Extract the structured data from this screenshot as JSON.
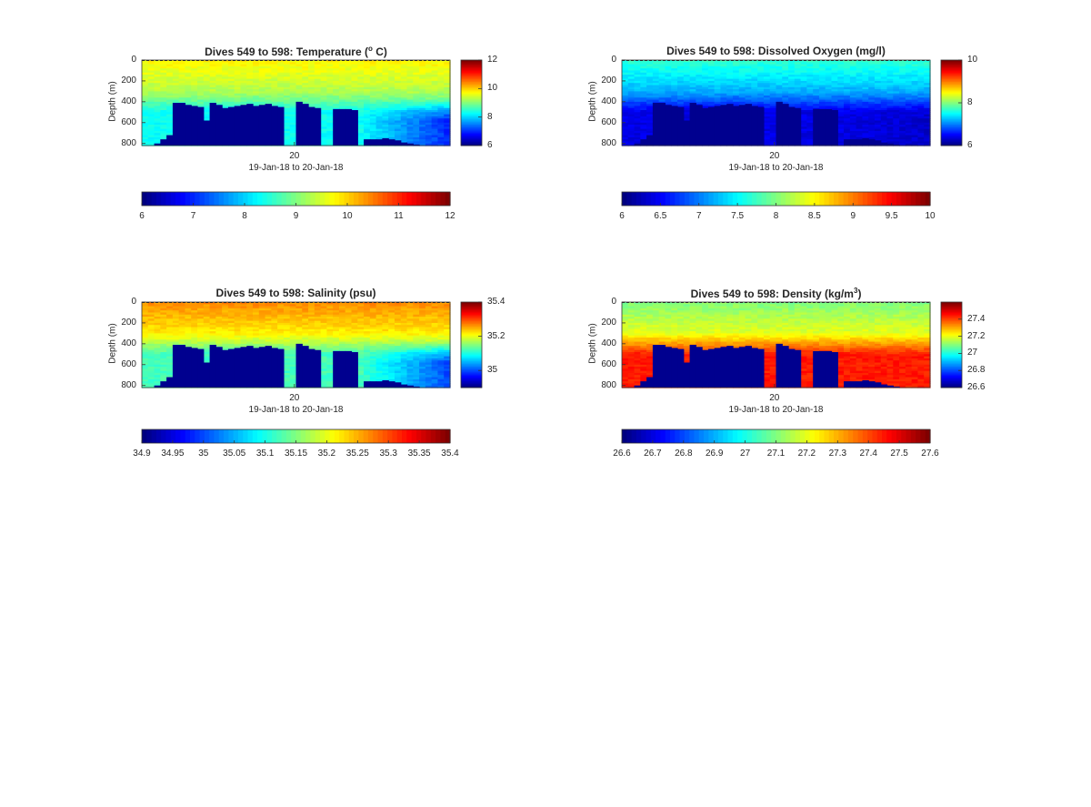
{
  "chart_data": [
    {
      "type": "heatmap",
      "title": "Dives 549 to 598: Temperature (",
      "title_sup": "o",
      "title_end": " C)",
      "ylabel": "Depth (m)",
      "xlabel": "19-Jan-18 to 20-Jan-18",
      "x_tick": "20",
      "y_ticks": [
        0,
        200,
        400,
        600,
        800
      ],
      "ylim": [
        820,
        0
      ],
      "clim": [
        6,
        12
      ],
      "side_colorbar_ticks": [
        6,
        8,
        10,
        12
      ],
      "bottom_colorbar_ticks": [
        6,
        7,
        8,
        9,
        10,
        11,
        12
      ],
      "profile": {
        "surface": 9.8,
        "mid": 9.3,
        "deep": 8.3,
        "deep_late": 7.0
      },
      "bathymetry": [
        820,
        820,
        800,
        760,
        720,
        410,
        410,
        430,
        440,
        450,
        580,
        410,
        430,
        460,
        450,
        440,
        430,
        420,
        440,
        430,
        420,
        440,
        450,
        820,
        820,
        400,
        420,
        450,
        460,
        820,
        820,
        470,
        470,
        470,
        480,
        820,
        760,
        760,
        760,
        750,
        760,
        770,
        790,
        800,
        810,
        820,
        820,
        820,
        820,
        820
      ]
    },
    {
      "type": "heatmap",
      "title": "Dives 549 to 598: Dissolved Oxygen (mg/l)",
      "ylabel": "Depth (m)",
      "xlabel": "19-Jan-18 to 20-Jan-18",
      "x_tick": "20",
      "y_ticks": [
        0,
        200,
        400,
        600,
        800
      ],
      "ylim": [
        820,
        0
      ],
      "clim": [
        6,
        10
      ],
      "side_colorbar_ticks": [
        6,
        8,
        10
      ],
      "bottom_colorbar_ticks": [
        "6",
        "6.5",
        "7",
        "7.5",
        "8",
        "8.5",
        "9",
        "9.5",
        "10"
      ],
      "profile": {
        "surface": 7.7,
        "mid": 7.2,
        "deep": 6.4,
        "deep_late": 6.3
      },
      "bathymetry": [
        820,
        820,
        800,
        760,
        720,
        410,
        410,
        430,
        440,
        450,
        580,
        410,
        430,
        460,
        450,
        440,
        430,
        420,
        440,
        430,
        420,
        440,
        450,
        820,
        820,
        400,
        420,
        450,
        460,
        820,
        820,
        470,
        470,
        470,
        480,
        820,
        760,
        760,
        760,
        750,
        760,
        770,
        790,
        800,
        810,
        820,
        820,
        820,
        820,
        820
      ]
    },
    {
      "type": "heatmap",
      "title": "Dives 549 to 598: Salinity (psu)",
      "ylabel": "Depth (m)",
      "xlabel": "19-Jan-18 to 20-Jan-18",
      "x_tick": "20",
      "y_ticks": [
        0,
        200,
        400,
        600,
        800
      ],
      "ylim": [
        820,
        0
      ],
      "clim": [
        34.9,
        35.4
      ],
      "side_colorbar_ticks": [
        35,
        35.2,
        35.4
      ],
      "bottom_colorbar_ticks": [
        "34.9",
        "34.95",
        "35",
        "35.05",
        "35.1",
        "35.15",
        "35.2",
        "35.25",
        "35.3",
        "35.35",
        "35.4"
      ],
      "profile": {
        "surface": 35.27,
        "mid": 35.22,
        "deep": 35.12,
        "deep_late": 35.0
      },
      "bathymetry": [
        820,
        820,
        800,
        760,
        720,
        410,
        410,
        430,
        440,
        450,
        580,
        410,
        430,
        460,
        450,
        440,
        430,
        420,
        440,
        430,
        420,
        440,
        450,
        820,
        820,
        400,
        420,
        450,
        460,
        820,
        820,
        470,
        470,
        470,
        480,
        820,
        760,
        760,
        760,
        750,
        760,
        770,
        790,
        800,
        810,
        820,
        820,
        820,
        820,
        820
      ]
    },
    {
      "type": "heatmap",
      "title": "Dives 549 to 598: Density (kg/m",
      "title_sup": "3",
      "title_end": ")",
      "ylabel": "Depth (m)",
      "xlabel": "19-Jan-18 to 20-Jan-18",
      "x_tick": "20",
      "y_ticks": [
        0,
        200,
        400,
        600,
        800
      ],
      "ylim": [
        820,
        0
      ],
      "clim": [
        26.6,
        27.6
      ],
      "side_colorbar_ticks": [
        26.6,
        26.8,
        27,
        27.2,
        27.4
      ],
      "bottom_colorbar_ticks": [
        "26.6",
        "26.7",
        "26.8",
        "26.9",
        "27",
        "27.1",
        "27.2",
        "27.3",
        "27.4",
        "27.5",
        "27.6"
      ],
      "profile": {
        "surface": 27.1,
        "mid": 27.2,
        "deep": 27.45,
        "deep_late": 27.45
      },
      "bathymetry": [
        820,
        820,
        800,
        760,
        720,
        410,
        410,
        430,
        440,
        450,
        580,
        410,
        430,
        460,
        450,
        440,
        430,
        420,
        440,
        430,
        420,
        440,
        450,
        820,
        820,
        400,
        420,
        450,
        460,
        820,
        820,
        470,
        470,
        470,
        480,
        820,
        760,
        760,
        760,
        750,
        760,
        770,
        790,
        800,
        810,
        820,
        820,
        820,
        820,
        820
      ]
    }
  ]
}
